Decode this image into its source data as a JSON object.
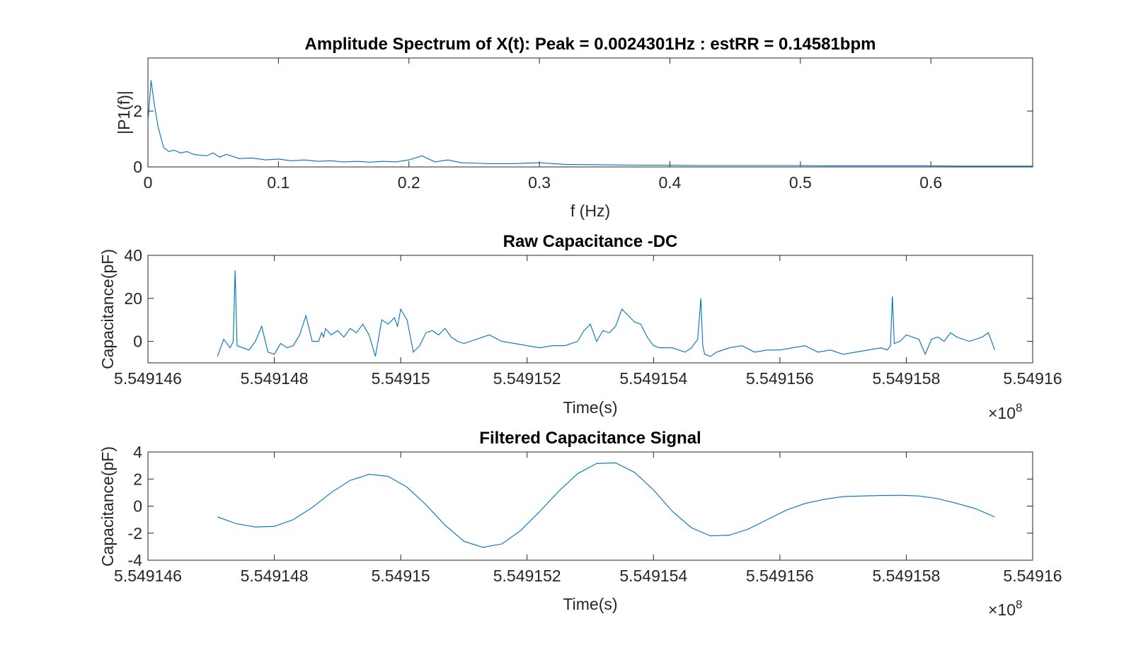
{
  "colors": {
    "series": "#0072BD",
    "axis": "#262626",
    "background": "#ffffff"
  },
  "chart_data": [
    {
      "type": "line",
      "title": "Amplitude Spectrum of X(t): Peak = 0.0024301Hz : estRR = 0.14581bpm",
      "xlabel": "f (Hz)",
      "ylabel": "|P1(f)|",
      "xlim": [
        0,
        0.678
      ],
      "ylim": [
        0,
        3.9
      ],
      "xticks": [
        0,
        0.1,
        0.2,
        0.3,
        0.4,
        0.5,
        0.6
      ],
      "xtick_labels": [
        "0",
        "0.1",
        "0.2",
        "0.3",
        "0.4",
        "0.5",
        "0.6"
      ],
      "yticks": [
        0,
        2
      ],
      "ytick_labels": [
        "0",
        "2"
      ],
      "exponent_label": "",
      "grid": false,
      "series": [
        {
          "x": [
            0,
            0.0024,
            0.005,
            0.008,
            0.012,
            0.016,
            0.02,
            0.025,
            0.03,
            0.035,
            0.04,
            0.045,
            0.05,
            0.055,
            0.06,
            0.07,
            0.08,
            0.09,
            0.1,
            0.11,
            0.12,
            0.13,
            0.14,
            0.15,
            0.16,
            0.17,
            0.18,
            0.19,
            0.2,
            0.21,
            0.22,
            0.23,
            0.24,
            0.25,
            0.26,
            0.28,
            0.3,
            0.32,
            0.34,
            0.36,
            0.38,
            0.4,
            0.42,
            0.45,
            0.48,
            0.5,
            0.52,
            0.55,
            0.58,
            0.6,
            0.62,
            0.65,
            0.678
          ],
          "y": [
            1.6,
            3.1,
            2.2,
            1.4,
            0.7,
            0.55,
            0.6,
            0.5,
            0.55,
            0.45,
            0.42,
            0.4,
            0.5,
            0.35,
            0.45,
            0.3,
            0.32,
            0.25,
            0.28,
            0.22,
            0.25,
            0.2,
            0.22,
            0.18,
            0.2,
            0.17,
            0.2,
            0.18,
            0.25,
            0.4,
            0.18,
            0.25,
            0.15,
            0.14,
            0.12,
            0.12,
            0.15,
            0.09,
            0.08,
            0.07,
            0.06,
            0.06,
            0.05,
            0.05,
            0.05,
            0.05,
            0.04,
            0.04,
            0.04,
            0.04,
            0.03,
            0.03,
            0.03
          ]
        }
      ]
    },
    {
      "type": "line",
      "title": "Raw Capacitance -DC",
      "xlabel": "Time(s)",
      "ylabel": "Capacitance(pF)",
      "xlim": [
        554914.6,
        554916.0
      ],
      "ylim": [
        -10,
        40
      ],
      "xticks": [
        554914.6,
        554914.8,
        554915.0,
        554915.2,
        554915.4,
        554915.6,
        554915.8,
        554916.0
      ],
      "xtick_labels": [
        "5.549146",
        "5.549148",
        "5.54915",
        "5.549152",
        "5.549154",
        "5.549156",
        "5.549158",
        "5.54916"
      ],
      "yticks": [
        0,
        20,
        40
      ],
      "ytick_labels": [
        "0",
        "20",
        "40"
      ],
      "exponent_label": "×10",
      "exponent_power": "8",
      "grid": false,
      "series": [
        {
          "x": [
            554914.71,
            554914.72,
            554914.73,
            554914.735,
            554914.738,
            554914.741,
            554914.75,
            554914.76,
            554914.77,
            554914.78,
            554914.79,
            554914.8,
            554914.81,
            554914.82,
            554914.83,
            554914.84,
            554914.85,
            554914.86,
            554914.87,
            554914.875,
            554914.878,
            554914.881,
            554914.89,
            554914.9,
            554914.91,
            554914.92,
            554914.93,
            554914.94,
            554914.95,
            554914.96,
            554914.97,
            554914.98,
            554914.99,
            554914.995,
            554915.0,
            554915.01,
            554915.02,
            554915.03,
            554915.04,
            554915.05,
            554915.06,
            554915.07,
            554915.08,
            554915.09,
            554915.1,
            554915.12,
            554915.14,
            554915.16,
            554915.18,
            554915.2,
            554915.22,
            554915.24,
            554915.26,
            554915.28,
            554915.29,
            554915.3,
            554915.31,
            554915.32,
            554915.33,
            554915.34,
            554915.35,
            554915.36,
            554915.37,
            554915.38,
            554915.39,
            554915.4,
            554915.41,
            554915.42,
            554915.43,
            554915.44,
            554915.45,
            554915.46,
            554915.47,
            554915.475,
            554915.478,
            554915.481,
            554915.49,
            554915.5,
            554915.52,
            554915.54,
            554915.56,
            554915.58,
            554915.6,
            554915.62,
            554915.64,
            554915.66,
            554915.68,
            554915.7,
            554915.72,
            554915.74,
            554915.76,
            554915.77,
            554915.775,
            554915.778,
            554915.781,
            554915.79,
            554915.8,
            554915.81,
            554915.82,
            554915.83,
            554915.84,
            554915.85,
            554915.86,
            554915.87,
            554915.88,
            554915.89,
            554915.9,
            554915.91,
            554915.92,
            554915.93,
            554915.94
          ],
          "y": [
            -7,
            1,
            -3,
            0,
            33,
            -2,
            -3,
            -4,
            0,
            7,
            -5,
            -6,
            -1,
            -3,
            -2,
            3,
            12,
            0,
            0,
            4,
            2,
            6,
            3,
            5,
            2,
            6,
            4,
            8,
            3,
            -7,
            10,
            8,
            11,
            7,
            15,
            10,
            -5,
            -2,
            4,
            5,
            3,
            6,
            2,
            0,
            -1,
            1,
            3,
            0,
            -1,
            -2,
            -3,
            -2,
            -2,
            0,
            5,
            8,
            0,
            5,
            4,
            7,
            15,
            12,
            9,
            8,
            2,
            -2,
            -3,
            -3,
            -3,
            -4,
            -5,
            -3,
            1,
            20,
            -2,
            -6,
            -7,
            -5,
            -3,
            -2,
            -5,
            -4,
            -4,
            -3,
            -2,
            -5,
            -4,
            -6,
            -5,
            -4,
            -3,
            -4,
            -2,
            21,
            -1,
            0,
            3,
            2,
            1,
            -6,
            1,
            2,
            0,
            4,
            2,
            1,
            0,
            1,
            2,
            4,
            -4
          ]
        }
      ]
    },
    {
      "type": "line",
      "title": "Filtered Capacitance Signal",
      "xlabel": "Time(s)",
      "ylabel": "Capacitance(pF)",
      "xlim": [
        554914.6,
        554916.0
      ],
      "ylim": [
        -4,
        4
      ],
      "xticks": [
        554914.6,
        554914.8,
        554915.0,
        554915.2,
        554915.4,
        554915.6,
        554915.8,
        554916.0
      ],
      "xtick_labels": [
        "5.549146",
        "5.549148",
        "5.54915",
        "5.549152",
        "5.549154",
        "5.549156",
        "5.549158",
        "5.54916"
      ],
      "yticks": [
        -4,
        -2,
        0,
        2,
        4
      ],
      "ytick_labels": [
        "-4",
        "-2",
        "0",
        "2",
        "4"
      ],
      "exponent_label": "×10",
      "exponent_power": "8",
      "grid": false,
      "series": [
        {
          "x": [
            554914.71,
            554914.74,
            554914.77,
            554914.8,
            554914.83,
            554914.86,
            554914.89,
            554914.92,
            554914.95,
            554914.98,
            554915.01,
            554915.04,
            554915.07,
            554915.1,
            554915.13,
            554915.16,
            554915.19,
            554915.22,
            554915.25,
            554915.28,
            554915.31,
            554915.34,
            554915.37,
            554915.4,
            554915.43,
            554915.46,
            554915.49,
            554915.52,
            554915.55,
            554915.58,
            554915.61,
            554915.64,
            554915.67,
            554915.7,
            554915.73,
            554915.76,
            554915.79,
            554915.82,
            554915.85,
            554915.88,
            554915.91,
            554915.94
          ],
          "y": [
            -0.8,
            -1.3,
            -1.55,
            -1.5,
            -1.0,
            -0.1,
            1.0,
            1.9,
            2.35,
            2.2,
            1.4,
            0.1,
            -1.4,
            -2.6,
            -3.05,
            -2.8,
            -1.8,
            -0.4,
            1.1,
            2.4,
            3.15,
            3.2,
            2.5,
            1.2,
            -0.4,
            -1.6,
            -2.2,
            -2.15,
            -1.7,
            -1.0,
            -0.3,
            0.2,
            0.5,
            0.7,
            0.75,
            0.78,
            0.8,
            0.75,
            0.55,
            0.2,
            -0.2,
            -0.8
          ]
        }
      ]
    }
  ]
}
